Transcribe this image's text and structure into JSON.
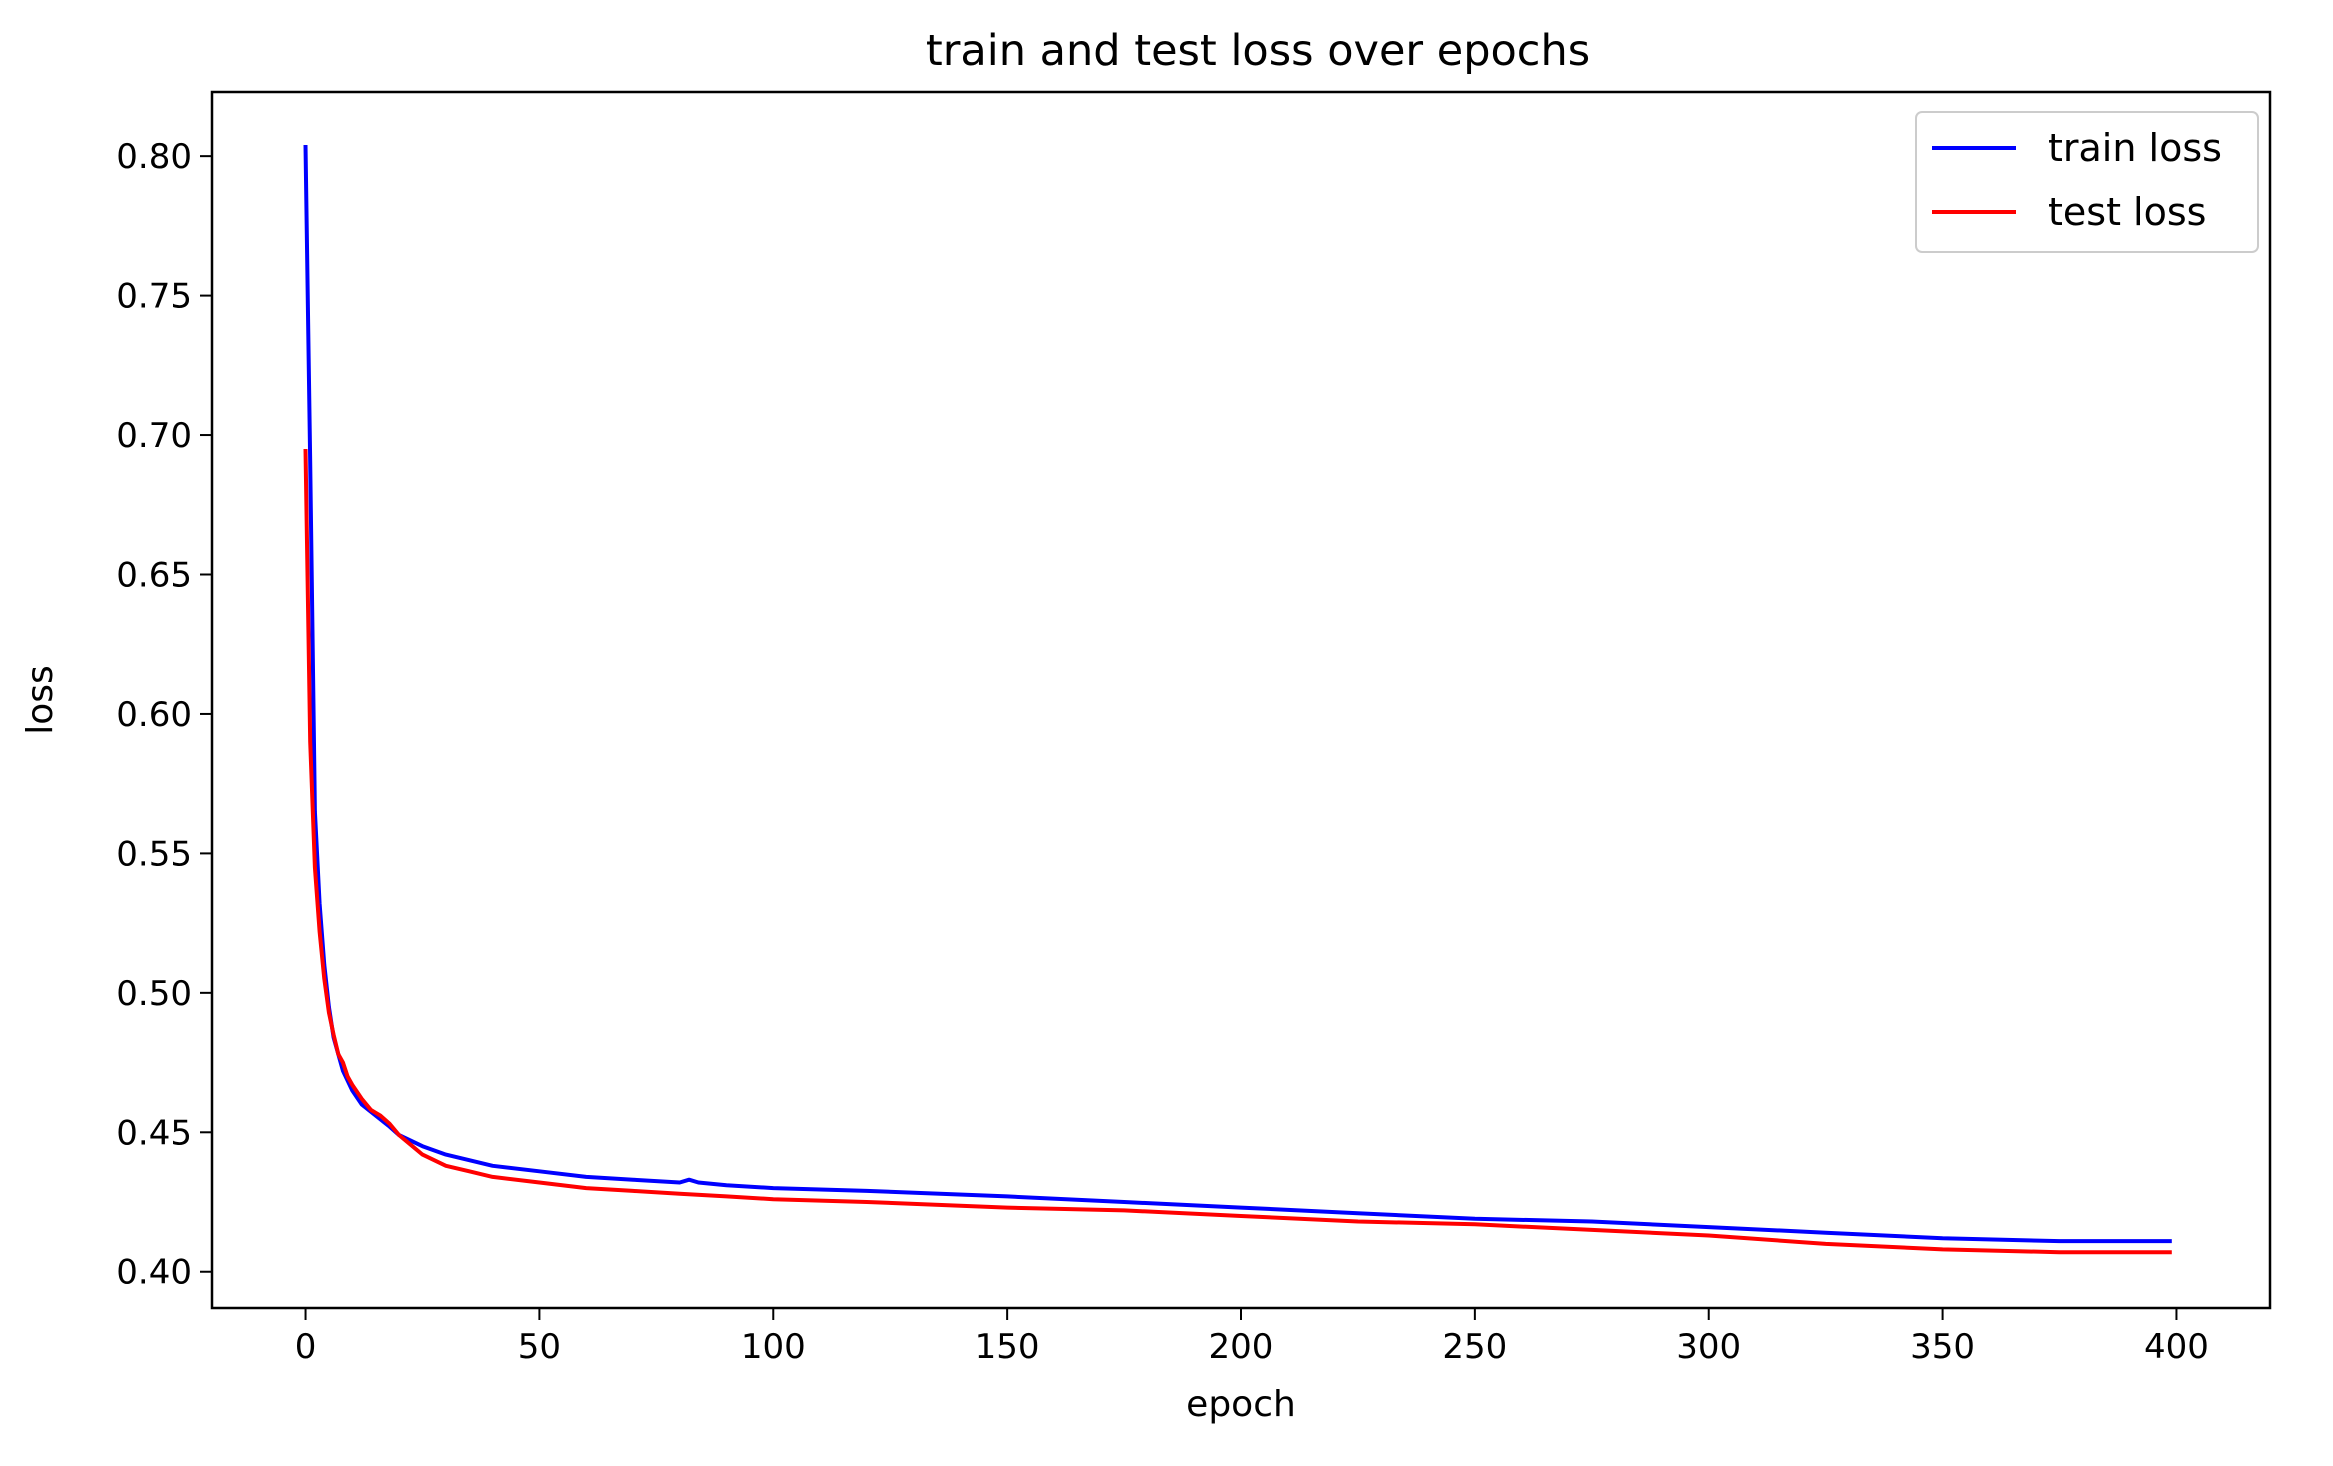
{
  "chart_data": {
    "type": "line",
    "title": "train and test loss over epochs",
    "xlabel": "epoch",
    "ylabel": "loss",
    "xlim": [
      -20,
      420
    ],
    "ylim": [
      0.387,
      0.823
    ],
    "xticks": [
      0,
      50,
      100,
      150,
      200,
      250,
      300,
      350,
      400
    ],
    "yticks": [
      0.4,
      0.45,
      0.5,
      0.55,
      0.6,
      0.65,
      0.7,
      0.75,
      0.8
    ],
    "xtick_labels": [
      "0",
      "50",
      "100",
      "150",
      "200",
      "250",
      "300",
      "350",
      "400"
    ],
    "ytick_labels": [
      "0.40",
      "0.45",
      "0.50",
      "0.55",
      "0.60",
      "0.65",
      "0.70",
      "0.75",
      "0.80"
    ],
    "grid": false,
    "legend_position": "top-right",
    "series": [
      {
        "name": "train loss",
        "color": "#0000ff",
        "x": [
          0,
          1,
          2,
          3,
          4,
          5,
          6,
          8,
          10,
          12,
          15,
          18,
          20,
          25,
          30,
          35,
          40,
          50,
          60,
          70,
          80,
          82,
          84,
          90,
          100,
          120,
          150,
          175,
          200,
          225,
          250,
          275,
          300,
          325,
          350,
          375,
          399
        ],
        "y": [
          0.804,
          0.69,
          0.565,
          0.532,
          0.51,
          0.495,
          0.484,
          0.472,
          0.465,
          0.46,
          0.456,
          0.452,
          0.449,
          0.445,
          0.442,
          0.44,
          0.438,
          0.436,
          0.434,
          0.433,
          0.432,
          0.433,
          0.432,
          0.431,
          0.43,
          0.429,
          0.427,
          0.425,
          0.423,
          0.421,
          0.419,
          0.418,
          0.416,
          0.414,
          0.412,
          0.411,
          0.411
        ]
      },
      {
        "name": "test loss",
        "color": "#ff0000",
        "x": [
          0,
          1,
          2,
          3,
          4,
          5,
          6,
          7,
          8,
          9,
          10,
          12,
          14,
          15,
          16,
          18,
          20,
          25,
          30,
          35,
          40,
          50,
          60,
          70,
          80,
          90,
          100,
          120,
          150,
          175,
          200,
          225,
          250,
          275,
          300,
          325,
          350,
          375,
          399
        ],
        "y": [
          0.695,
          0.59,
          0.545,
          0.522,
          0.505,
          0.493,
          0.485,
          0.478,
          0.475,
          0.47,
          0.467,
          0.462,
          0.458,
          0.457,
          0.456,
          0.453,
          0.449,
          0.442,
          0.438,
          0.436,
          0.434,
          0.432,
          0.43,
          0.429,
          0.428,
          0.427,
          0.426,
          0.425,
          0.423,
          0.422,
          0.42,
          0.418,
          0.417,
          0.415,
          0.413,
          0.41,
          0.408,
          0.407,
          0.407
        ]
      }
    ]
  }
}
